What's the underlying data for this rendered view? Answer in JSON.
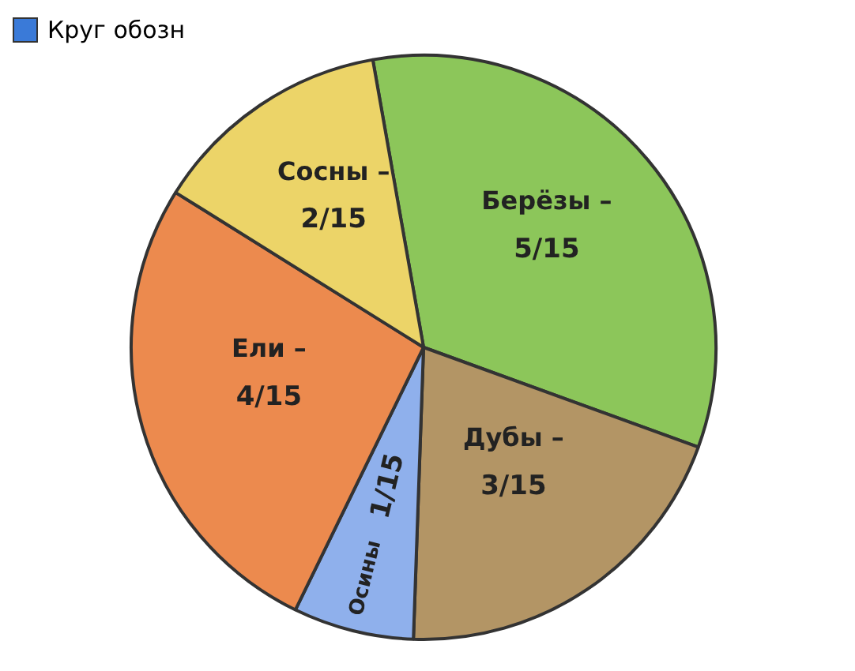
{
  "chart_data": {
    "type": "pie",
    "annotations": [
      "Круг обозн"
    ],
    "categories": [
      "Берёзы –",
      "Дубы –",
      "Осины",
      "Ели –",
      "Сосны –"
    ],
    "values": [
      33.33,
      20,
      6.67,
      26.67,
      13.33
    ],
    "value_labels": [
      "5/15",
      "3/15",
      "1/15",
      "4/15",
      "2/15"
    ],
    "colors": [
      "#8cc65a",
      "#b39565",
      "#8fb0ec",
      "#ec8a4e",
      "#ecd468"
    ],
    "legend": false
  }
}
